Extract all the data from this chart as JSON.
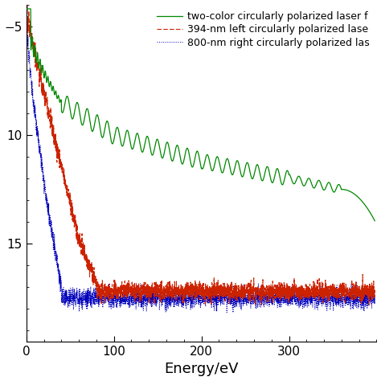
{
  "xlabel": "Energy/eV",
  "xlim": [
    0,
    400
  ],
  "ylim": [
    -19.5,
    -4.0
  ],
  "yticks": [
    -5,
    -10,
    -15
  ],
  "ytick_labels": [
    "−5",
    "10",
    "15"
  ],
  "xticks": [
    0,
    100,
    200,
    300
  ],
  "legend_entries": [
    "two-color circularly polarized laser f",
    "394-nm left circularly polarized lase",
    "800-nm right circularly polarized las"
  ],
  "green_color": "#008800",
  "red_color": "#cc2200",
  "blue_color": "#0000bb",
  "background_color": "#ffffff",
  "xlabel_fontsize": 13,
  "legend_fontsize": 9
}
